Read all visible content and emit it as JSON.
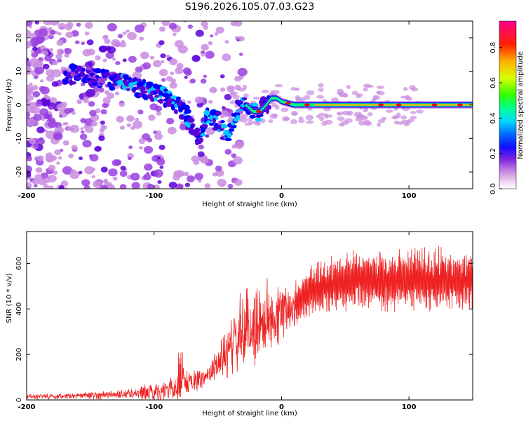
{
  "chart_data": [
    {
      "id": "spectrogram",
      "type": "heatmap",
      "title": "S196.2026.105.07.03.G23",
      "xlabel": "Height of straight line (km)",
      "ylabel": "Frequency (Hz)",
      "xlim": [
        -200,
        150
      ],
      "ylim": [
        -25,
        25
      ],
      "xticks": [
        -200,
        -100,
        0,
        100
      ],
      "yticks": [
        -20,
        -10,
        0,
        10,
        20
      ],
      "colorbar": {
        "label": "Normalized spectral amplitude",
        "range": [
          0,
          0.95
        ],
        "ticks": [
          0.0,
          0.2,
          0.4,
          0.6,
          0.8
        ],
        "tick_labels": [
          "0.0",
          "0.2",
          "0.4",
          "0.6",
          "0.8"
        ],
        "colors": [
          "#f5e6f7",
          "#c98de0",
          "#9a3fe0",
          "#5a00d8",
          "#0000ff",
          "#00c8ff",
          "#00ff80",
          "#66ff00",
          "#d8ff00",
          "#ffb000",
          "#ff0000",
          "#ff0080"
        ]
      },
      "ridge": {
        "description": "main frequency ridge (data units)",
        "x": [
          -160,
          -140,
          -120,
          -110,
          -100,
          -90,
          -80,
          -72,
          -65,
          -58,
          -50,
          -42,
          -35,
          -28,
          -22,
          -17,
          -12,
          -8,
          -4,
          0,
          10,
          30,
          60,
          100,
          150
        ],
        "y": [
          9,
          8,
          6,
          5,
          4,
          2,
          0,
          -5,
          -10,
          -3,
          -5,
          -10,
          -2,
          0,
          -2,
          -2,
          0,
          2,
          2,
          1,
          0,
          0,
          0,
          0,
          0
        ]
      }
    },
    {
      "id": "snr",
      "type": "line",
      "xlabel": "Height of straight line (km)",
      "ylabel": "SNR (10 * v/v)",
      "xlim": [
        -200,
        150
      ],
      "ylim": [
        0,
        740
      ],
      "xticks": [
        -200,
        -100,
        0,
        100
      ],
      "yticks": [
        0,
        200,
        400,
        600
      ],
      "series": [
        {
          "name": "SNR",
          "color": "#ee2222",
          "envelope_x": [
            -200,
            -180,
            -160,
            -140,
            -120,
            -100,
            -90,
            -80,
            -70,
            -60,
            -50,
            -40,
            -30,
            -20,
            -10,
            0,
            10,
            20,
            30,
            40,
            60,
            80,
            100,
            120,
            150
          ],
          "envelope_mean": [
            15,
            15,
            18,
            22,
            28,
            35,
            45,
            60,
            80,
            100,
            160,
            230,
            300,
            330,
            360,
            380,
            420,
            470,
            500,
            510,
            530,
            520,
            530,
            530,
            530
          ],
          "envelope_spread": [
            12,
            14,
            15,
            18,
            22,
            40,
            50,
            70,
            55,
            40,
            80,
            130,
            200,
            190,
            170,
            130,
            100,
            110,
            120,
            130,
            130,
            140,
            140,
            150,
            130
          ]
        }
      ]
    }
  ]
}
